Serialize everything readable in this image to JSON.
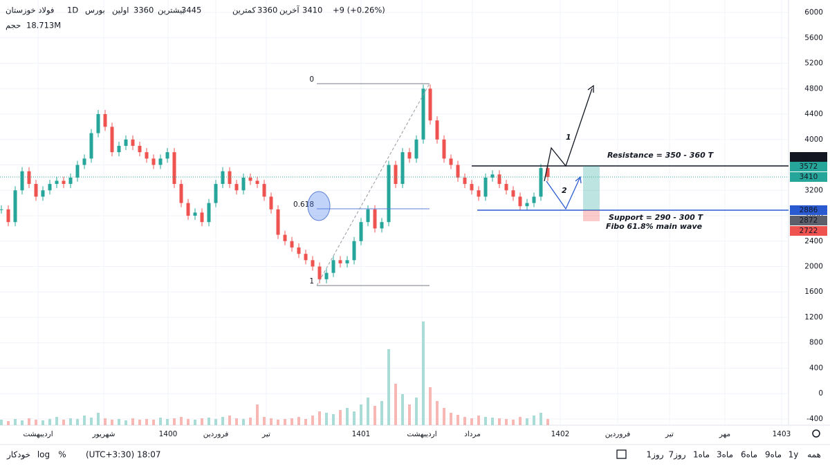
{
  "header": {
    "symbol": "فولاد خوزستان",
    "interval": "1D",
    "exchange": "بورس",
    "stats": [
      {
        "label": "اولین",
        "value": "3360"
      },
      {
        "label": "بیشترین",
        "value": "3445"
      },
      {
        "label": "کمترین",
        "value": "3360"
      },
      {
        "label": "آخرین",
        "value": "3410"
      }
    ],
    "change": "+9 (+0.26%)",
    "volume_label": "حجم",
    "volume_value": "18.713M"
  },
  "chart": {
    "ylim": [
      -498,
      6196
    ],
    "yticks": [
      6000,
      5600,
      5200,
      4800,
      4400,
      4000,
      3600,
      3200,
      2800,
      2400,
      2000,
      1600,
      1200,
      800,
      400,
      0,
      -400
    ],
    "closes": [
      2900,
      2700,
      3200,
      3500,
      3300,
      3100,
      3200,
      3300,
      3350,
      3300,
      3400,
      3600,
      3700,
      4100,
      4400,
      4200,
      3800,
      3900,
      4000,
      3900,
      3800,
      3700,
      3600,
      3700,
      3800,
      3300,
      3000,
      2800,
      2850,
      2700,
      3000,
      3300,
      3500,
      3300,
      3200,
      3400,
      3350,
      3300,
      3100,
      2900,
      2500,
      2400,
      2300,
      2200,
      2100,
      2000,
      1800,
      1900,
      2100,
      2050,
      2100,
      2400,
      2700,
      2900,
      2600,
      2700,
      3600,
      3300,
      3800,
      3700,
      4000,
      4800,
      4300,
      4000,
      3700,
      3600,
      3400,
      3300,
      3200,
      3100,
      3400,
      3450,
      3300,
      3200,
      3100,
      2950,
      3000,
      3100,
      3550,
      3410
    ],
    "volumes": [
      8,
      6,
      9,
      7,
      10,
      8,
      7,
      9,
      12,
      8,
      10,
      9,
      14,
      11,
      18,
      10,
      8,
      9,
      7,
      10,
      8,
      9,
      8,
      11,
      9,
      10,
      12,
      9,
      8,
      10,
      11,
      9,
      12,
      14,
      10,
      9,
      11,
      30,
      12,
      10,
      8,
      9,
      10,
      12,
      9,
      14,
      20,
      18,
      16,
      22,
      25,
      20,
      30,
      40,
      28,
      35,
      110,
      60,
      45,
      30,
      40,
      150,
      55,
      35,
      25,
      18,
      15,
      12,
      10,
      14,
      12,
      11,
      10,
      9,
      8,
      12,
      10,
      14,
      18,
      9
    ],
    "volume_max": 160,
    "time_labels": [
      "اردیبهشت",
      "شهریور",
      "1400",
      "فروردین",
      "تیر",
      "1401",
      "اردیبهشت",
      "مرداد",
      "1402",
      "فروردین",
      "تیر",
      "مهر",
      "1403"
    ],
    "price_labels": [
      {
        "value": 3586
      },
      {
        "value": 3572
      },
      {
        "value": 3410
      },
      {
        "value": 2886
      },
      {
        "value": 2872
      },
      {
        "value": 2722
      }
    ],
    "fib_levels": [
      0,
      0.618,
      1
    ],
    "resistance": "Resistance = 350 - 360 T",
    "support": "Support = 290 - 300 T",
    "fibo_note": "Fibo 61.8% main wave",
    "wave_labels": [
      "1",
      "2"
    ]
  },
  "toolbar": {
    "ranges": [
      "همه",
      "1y",
      "9ماه",
      "6ماه",
      "3ماه",
      "1ماه",
      "7روز",
      "1روز"
    ],
    "timezone": "(UTC+3:30) 18:07",
    "options": [
      "%",
      "log",
      "خودکار"
    ]
  }
}
